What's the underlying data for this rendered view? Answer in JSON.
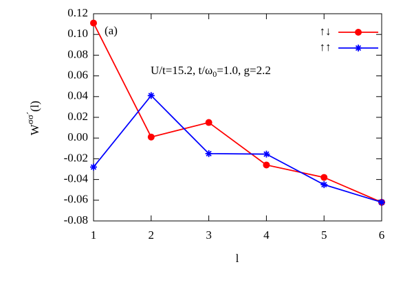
{
  "chart_data": {
    "type": "line",
    "panel_label": "(a)",
    "annotation_parts": [
      "U/t=15.2,  t/ω",
      "0",
      "=1.0,  g=2.2"
    ],
    "xlabel": "l",
    "ylabel_parts": [
      "W",
      "σσ´",
      "(l)"
    ],
    "x": [
      1,
      2,
      3,
      4,
      5,
      6
    ],
    "series": [
      {
        "name": "↑↓",
        "color": "#ff0000",
        "marker": "circle",
        "values": [
          0.111,
          0.001,
          0.015,
          -0.026,
          -0.038,
          -0.062
        ]
      },
      {
        "name": "↑↑",
        "color": "#0000ff",
        "marker": "star",
        "values": [
          -0.028,
          0.041,
          -0.015,
          -0.0155,
          -0.045,
          -0.062
        ]
      }
    ],
    "xlim": [
      1,
      6
    ],
    "xticks": [
      1,
      2,
      3,
      4,
      5,
      6
    ],
    "ylim": [
      -0.08,
      0.12
    ],
    "yticks": [
      {
        "value": -0.08,
        "label": "-0.08"
      },
      {
        "value": -0.06,
        "label": "-0.06"
      },
      {
        "value": -0.04,
        "label": "-0.04"
      },
      {
        "value": -0.02,
        "label": "-0.02"
      },
      {
        "value": 0,
        "label": "0.00"
      },
      {
        "value": 0.02,
        "label": "0.02"
      },
      {
        "value": 0.04,
        "label": "0.04"
      },
      {
        "value": 0.06,
        "label": "0.06"
      },
      {
        "value": 0.08,
        "label": "0.08"
      },
      {
        "value": 0.1,
        "label": "0.10"
      },
      {
        "value": 0.12,
        "label": "0.12"
      }
    ],
    "legend": "top-right"
  }
}
